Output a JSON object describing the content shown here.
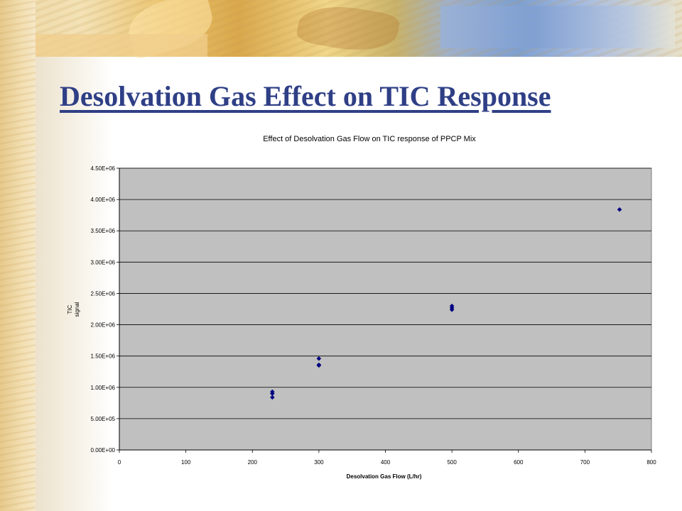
{
  "slide": {
    "title": "Desolvation Gas Effect on TIC Response"
  },
  "colors": {
    "title": "#2f3f86",
    "plot_background": "#c0c0c0",
    "marker": "#000080",
    "grid": "#000000"
  },
  "chart_data": {
    "type": "scatter",
    "title": "Effect of Desolvation Gas Flow on TIC response of PPCP Mix",
    "xlabel": "Desolvation Gas Flow (L/hr)",
    "ylabel": "TIC signal",
    "xlim": [
      0,
      800
    ],
    "ylim": [
      0,
      4500000
    ],
    "x_ticks": [
      0,
      100,
      200,
      300,
      400,
      500,
      600,
      700,
      800
    ],
    "x_tick_labels": [
      "0",
      "100",
      "200",
      "300",
      "400",
      "500",
      "600",
      "700",
      "800"
    ],
    "y_ticks": [
      0,
      500000,
      1000000,
      1500000,
      2000000,
      2500000,
      3000000,
      3500000,
      4000000,
      4500000
    ],
    "y_tick_labels": [
      "0.00E+00",
      "5.00E+05",
      "1.00E+06",
      "1.50E+06",
      "2.00E+06",
      "2.50E+06",
      "3.00E+06",
      "3.50E+06",
      "4.00E+06",
      "4.50E+06"
    ],
    "grid": "horizontal",
    "legend": false,
    "marker": "diamond",
    "series": [
      {
        "points": [
          {
            "x": 230,
            "y": 930000
          },
          {
            "x": 230,
            "y": 900000
          },
          {
            "x": 230,
            "y": 840000
          },
          {
            "x": 300,
            "y": 1460000
          },
          {
            "x": 300,
            "y": 1360000
          },
          {
            "x": 300,
            "y": 1350000
          },
          {
            "x": 500,
            "y": 2300000
          },
          {
            "x": 500,
            "y": 2270000
          },
          {
            "x": 500,
            "y": 2240000
          },
          {
            "x": 752,
            "y": 3840000
          }
        ]
      }
    ]
  }
}
